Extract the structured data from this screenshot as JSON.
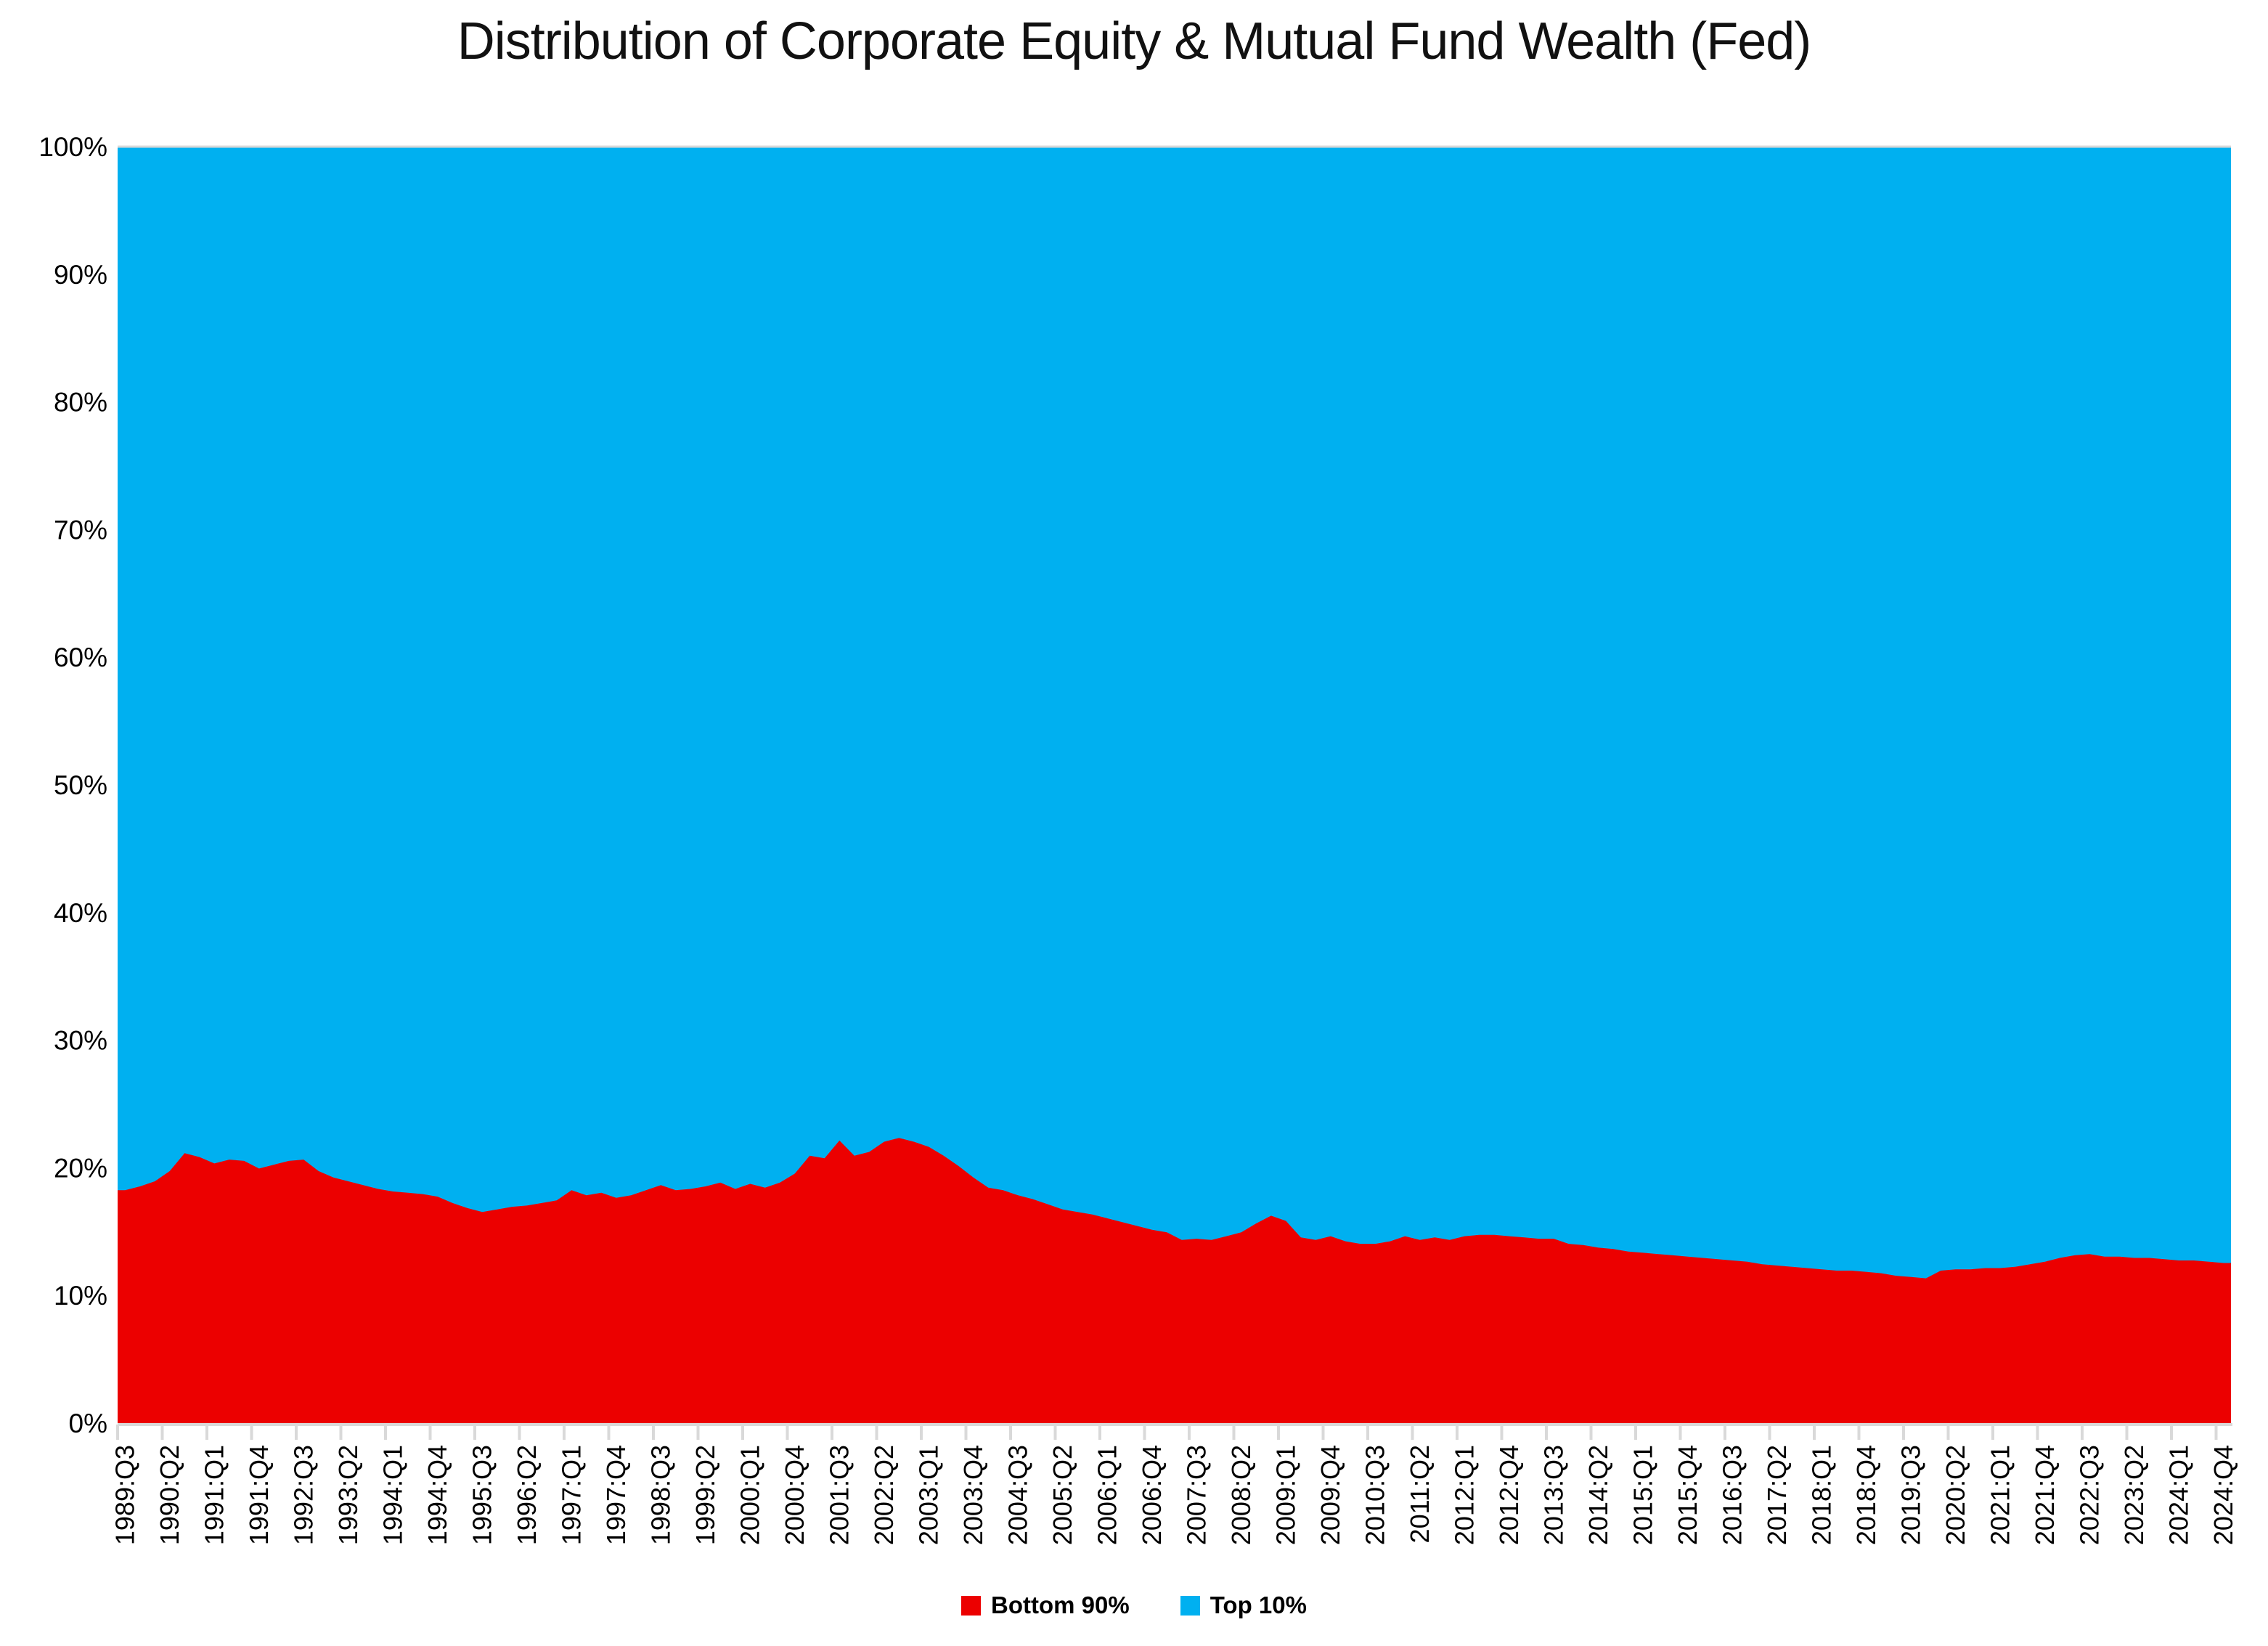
{
  "chart": {
    "title": "Distribution of Corporate Equity & Mutual Fund Wealth (Fed)"
  },
  "chart_data": {
    "type": "area",
    "stacked": true,
    "stack_total_percent": 100,
    "title": "Distribution of Corporate Equity & Mutual Fund Wealth (Fed)",
    "xlabel": "",
    "ylabel": "",
    "ylim": [
      0,
      100
    ],
    "y_tick_labels": [
      "0%",
      "10%",
      "20%",
      "30%",
      "40%",
      "50%",
      "60%",
      "70%",
      "80%",
      "90%",
      "100%"
    ],
    "x_quarters": {
      "start": "1989:Q3",
      "end": "2024:Q4",
      "count": 142,
      "tick_step": 3
    },
    "x_tick_labels": [
      "1989:Q3",
      "1990:Q2",
      "1991:Q1",
      "1991:Q4",
      "1992:Q3",
      "1993:Q2",
      "1994:Q1",
      "1994:Q4",
      "1995:Q3",
      "1996:Q2",
      "1997:Q1",
      "1997:Q4",
      "1998:Q3",
      "1999:Q2",
      "2000:Q1",
      "2000:Q4",
      "2001:Q3",
      "2002:Q2",
      "2003:Q1",
      "2003:Q4",
      "2004:Q3",
      "2005:Q2",
      "2006:Q1",
      "2006:Q4",
      "2007:Q3",
      "2008:Q2",
      "2009:Q1",
      "2009:Q4",
      "2010:Q3",
      "2011:Q2",
      "2012:Q1",
      "2012:Q4",
      "2013:Q3",
      "2014:Q2",
      "2015:Q1",
      "2015:Q4",
      "2016:Q3",
      "2017:Q2",
      "2018:Q1",
      "2018:Q4",
      "2019:Q3",
      "2020:Q2",
      "2021:Q1",
      "2021:Q4",
      "2022:Q3",
      "2023:Q2",
      "2024:Q1",
      "2024:Q4"
    ],
    "gridlines": "top-border-only",
    "legend_position": "bottom",
    "axis_line_color": "#D9D9D9",
    "text_color": "#000000",
    "series": [
      {
        "name": "Bottom 90%",
        "color": "#EC0000",
        "values": [
          18.3,
          18.6,
          19.0,
          19.8,
          21.2,
          20.9,
          20.4,
          20.7,
          20.6,
          20.0,
          20.3,
          20.6,
          20.7,
          19.8,
          19.3,
          19.0,
          18.7,
          18.4,
          18.2,
          18.1,
          18.0,
          17.8,
          17.3,
          16.9,
          16.6,
          16.8,
          17.0,
          17.1,
          17.3,
          17.5,
          18.3,
          17.9,
          18.1,
          17.7,
          17.9,
          18.3,
          18.7,
          18.3,
          18.4,
          18.6,
          18.9,
          18.4,
          18.8,
          18.5,
          18.9,
          19.6,
          21.0,
          20.8,
          22.2,
          21.0,
          21.3,
          22.1,
          22.4,
          22.1,
          21.7,
          21.0,
          20.2,
          19.3,
          18.5,
          18.3,
          17.9,
          17.6,
          17.2,
          16.8,
          16.6,
          16.4,
          16.1,
          15.8,
          15.5,
          15.2,
          15.0,
          14.4,
          14.5,
          14.4,
          14.7,
          15.0,
          15.7,
          16.3,
          15.9,
          14.6,
          14.4,
          14.7,
          14.3,
          14.1,
          14.1,
          14.3,
          14.7,
          14.4,
          14.6,
          14.4,
          14.7,
          14.8,
          14.8,
          14.7,
          14.6,
          14.5,
          14.5,
          14.1,
          14.0,
          13.8,
          13.7,
          13.5,
          13.4,
          13.3,
          13.2,
          13.1,
          13.0,
          12.9,
          12.8,
          12.7,
          12.5,
          12.4,
          12.3,
          12.2,
          12.1,
          12.0,
          12.0,
          11.9,
          11.8,
          11.6,
          11.5,
          11.4,
          12.0,
          12.1,
          12.1,
          12.2,
          12.2,
          12.3,
          12.5,
          12.7,
          13.0,
          13.2,
          13.3,
          13.1,
          13.1,
          13.0,
          13.0,
          12.9,
          12.8,
          12.8,
          12.7,
          12.6
        ]
      },
      {
        "name": "Top 10%",
        "color": "#00B0F0",
        "values_rule": "100 minus Bottom 90% (stacked to 100%)"
      }
    ]
  }
}
